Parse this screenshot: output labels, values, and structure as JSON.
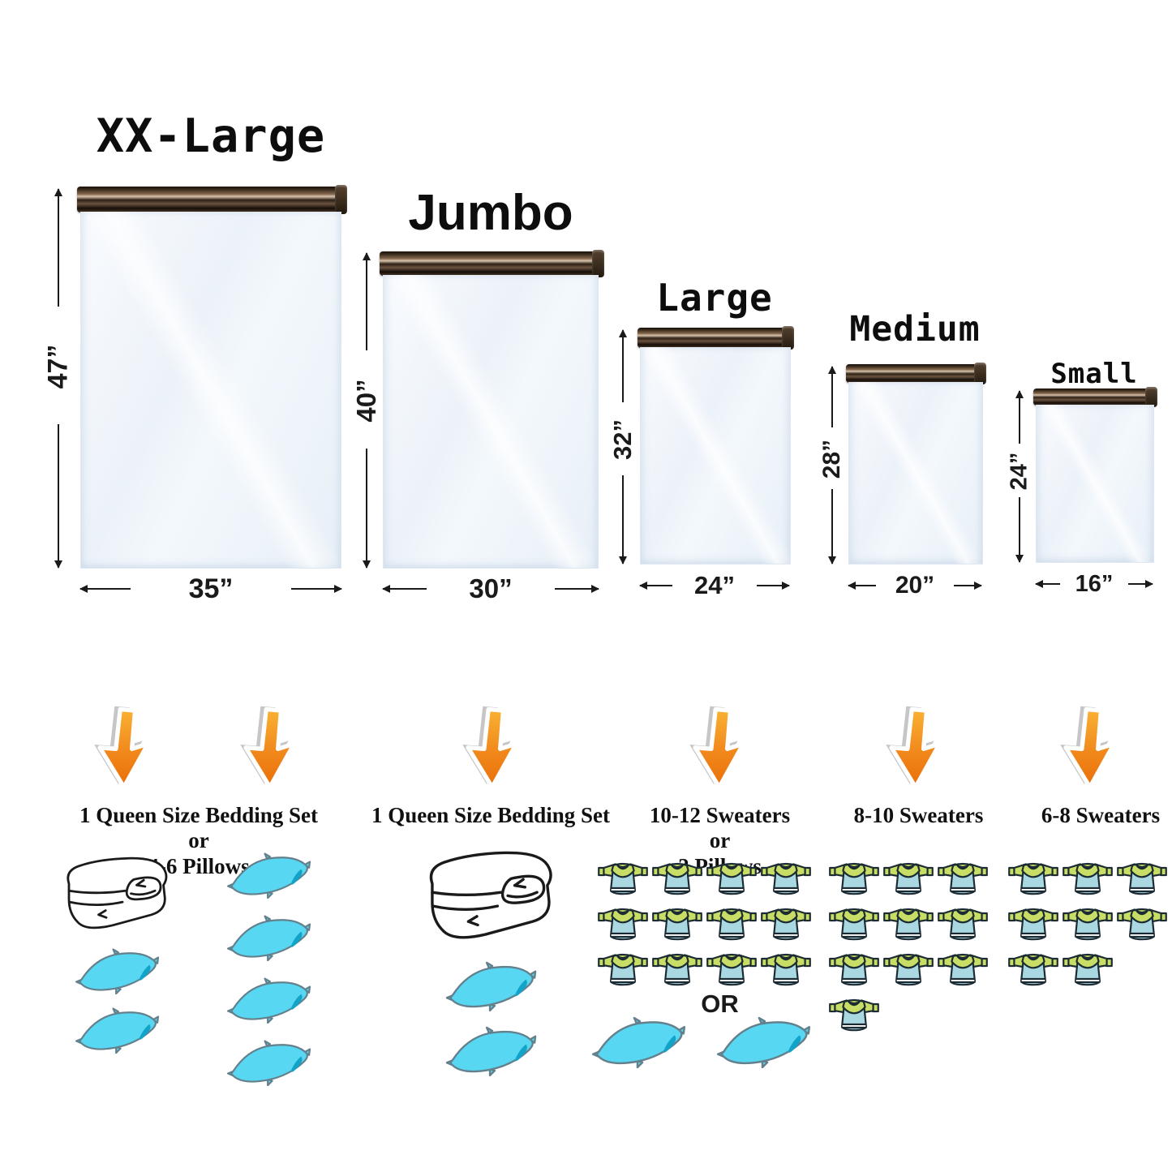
{
  "bags": [
    {
      "name": "XX-Large",
      "height": "47”",
      "width": "35”",
      "capacity": [
        "1 Queen Size Bedding Set",
        "or",
        "4-6 Pillows"
      ]
    },
    {
      "name": "Jumbo",
      "height": "40”",
      "width": "30”",
      "capacity": [
        "1 Queen Size Bedding Set"
      ]
    },
    {
      "name": "Large",
      "height": "32”",
      "width": "24”",
      "capacity": [
        "10-12 Sweaters",
        "or",
        "2 Pillows"
      ],
      "or_divider": "OR"
    },
    {
      "name": "Medium",
      "height": "28”",
      "width": "20”",
      "capacity": [
        "8-10 Sweaters"
      ]
    },
    {
      "name": "Small",
      "height": "24”",
      "width": "16”",
      "capacity": [
        "6-8 Sweaters"
      ]
    }
  ],
  "illustrations": {
    "xxl_left_stack": [
      "comforter",
      "pillow",
      "pillow"
    ],
    "xxl_right_stack": [
      "pillow",
      "pillow",
      "pillow",
      "pillow"
    ],
    "jumbo_stack": [
      "comforter",
      "pillow",
      "pillow"
    ],
    "large_sweater_rows": [
      4,
      4,
      4
    ],
    "large_pillow_row": [
      "pillow",
      "pillow"
    ],
    "medium_sweater_rows": [
      3,
      3,
      3,
      1
    ],
    "small_sweater_rows": [
      3,
      3,
      2
    ]
  },
  "colors": {
    "ink": "#1a1a1a",
    "icon_outline": "#1c2b33",
    "bag_face": "#ecf2f9",
    "bag_edge": "#dfe8f2",
    "zipper_dark": "#241a10",
    "zipper_light": "#8a6d52",
    "arrow_top": "#f9b233",
    "arrow_mid": "#f1881c",
    "arrow_bottom": "#e96f08",
    "arrow_shadow": "#c6c6c6",
    "pillow": "#58d7f2",
    "pillow_seam": "#12a3c8",
    "pillow_outline": "#63808c",
    "sweater_body": "#a9d8e2",
    "sweater_sleeve": "#c7dd65"
  }
}
